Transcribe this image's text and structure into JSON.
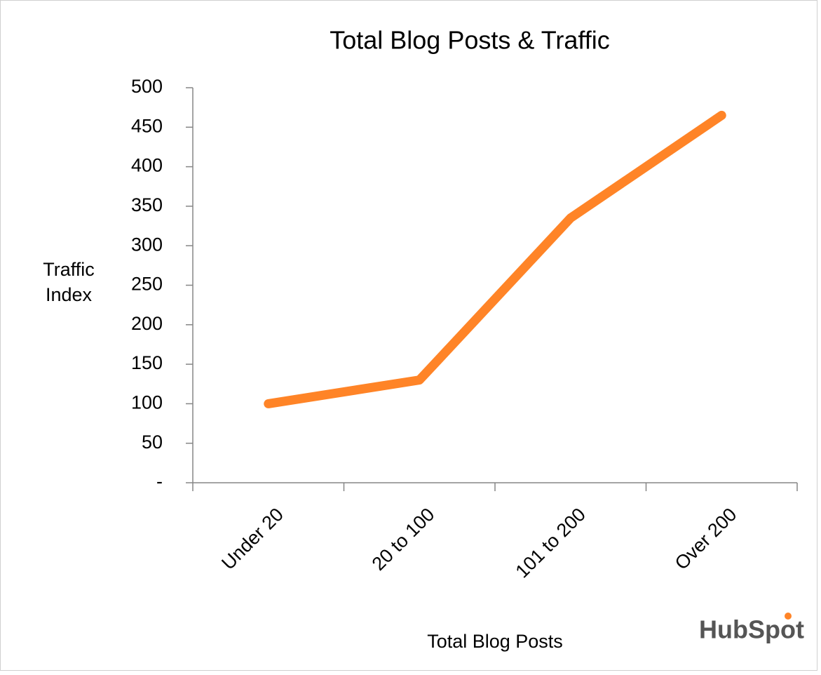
{
  "chart_data": {
    "type": "line",
    "title": "Total Blog Posts & Traffic",
    "x_label": "Total Blog Posts",
    "y_label": "Traffic Index",
    "logo": "HubSpot",
    "categories": [
      "Under 20",
      "20 to 100",
      "101 to 200",
      "Over 200"
    ],
    "series": [
      {
        "name": "Traffic Index",
        "color": "#ff8427",
        "values": [
          100,
          130,
          335,
          465
        ]
      }
    ],
    "ylim": [
      0,
      500
    ],
    "yticks": [
      {
        "value": 0,
        "label": "-"
      },
      50,
      100,
      150,
      200,
      250,
      300,
      350,
      400,
      450,
      500
    ],
    "grid": false
  }
}
